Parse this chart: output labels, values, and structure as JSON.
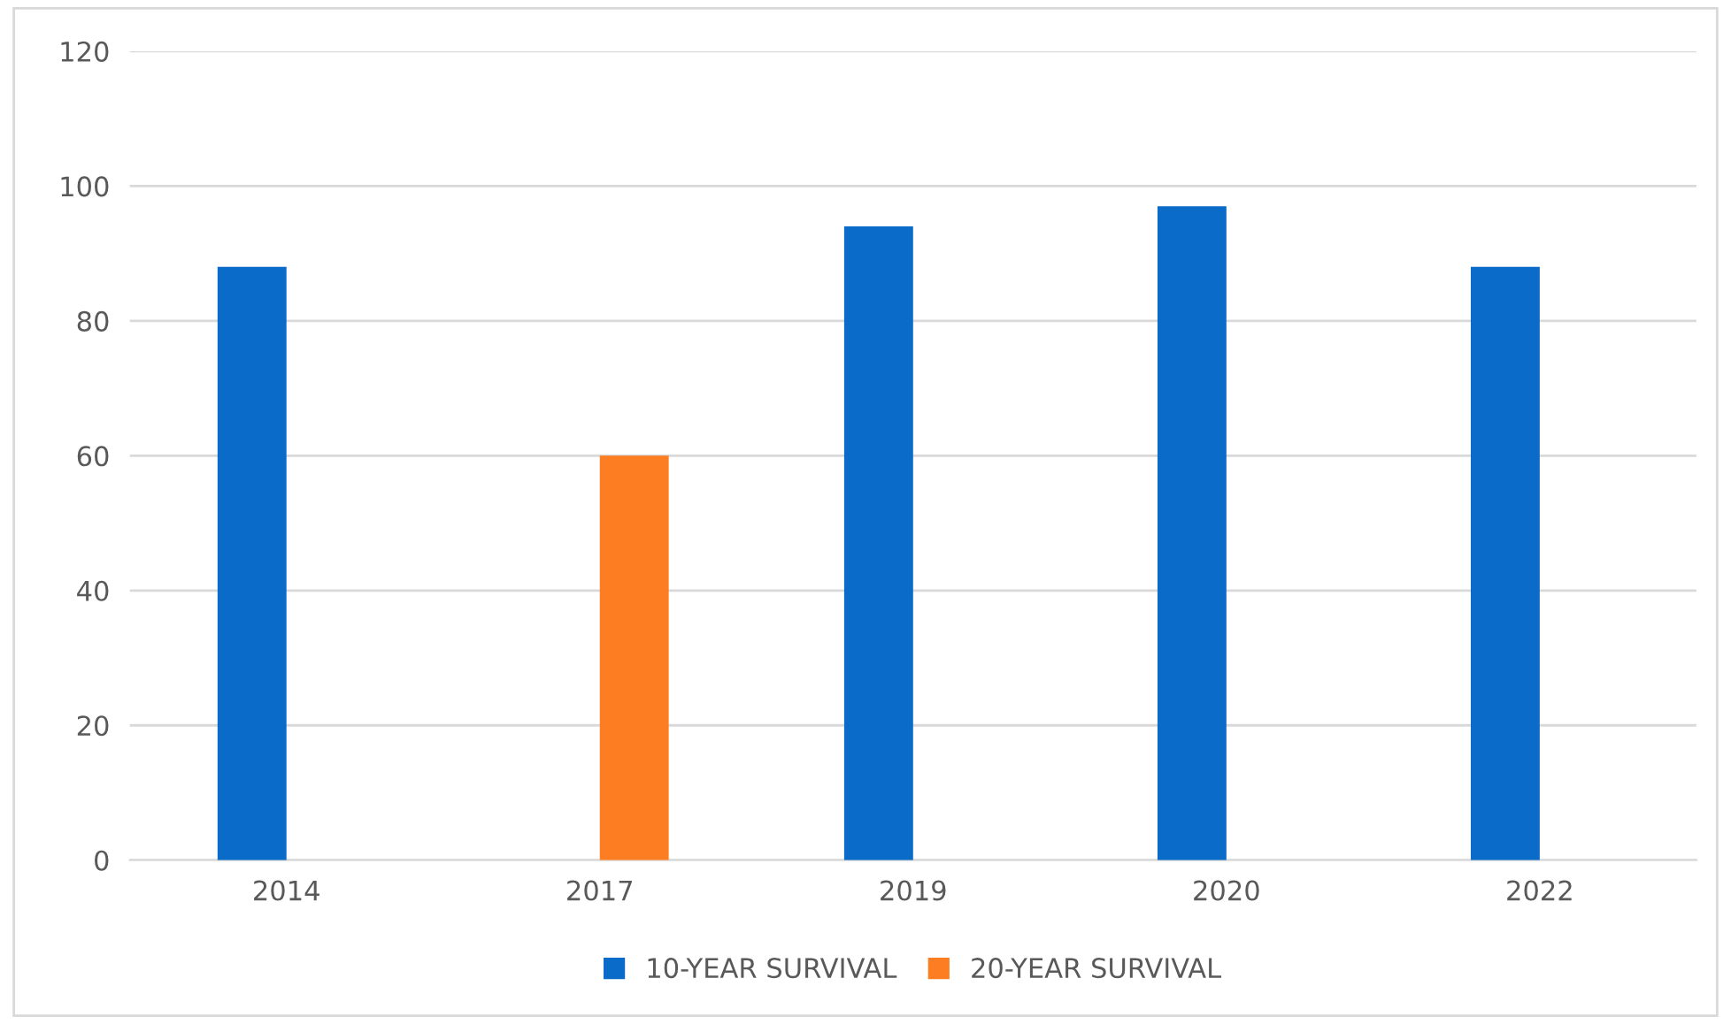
{
  "chart_data": {
    "type": "bar",
    "categories": [
      "2014",
      "2017",
      "2019",
      "2020",
      "2022"
    ],
    "series": [
      {
        "name": "10-YEAR SURVIVAL",
        "color": "#0a6bc8",
        "values": [
          88,
          null,
          94,
          97,
          88
        ]
      },
      {
        "name": "20-YEAR SURVIVAL",
        "color": "#fd7d22",
        "values": [
          null,
          60,
          null,
          null,
          null
        ]
      }
    ],
    "ylim": [
      0,
      120
    ],
    "yticks": [
      0,
      20,
      40,
      60,
      80,
      100,
      120
    ],
    "grid": "y",
    "legend": "bottom"
  }
}
